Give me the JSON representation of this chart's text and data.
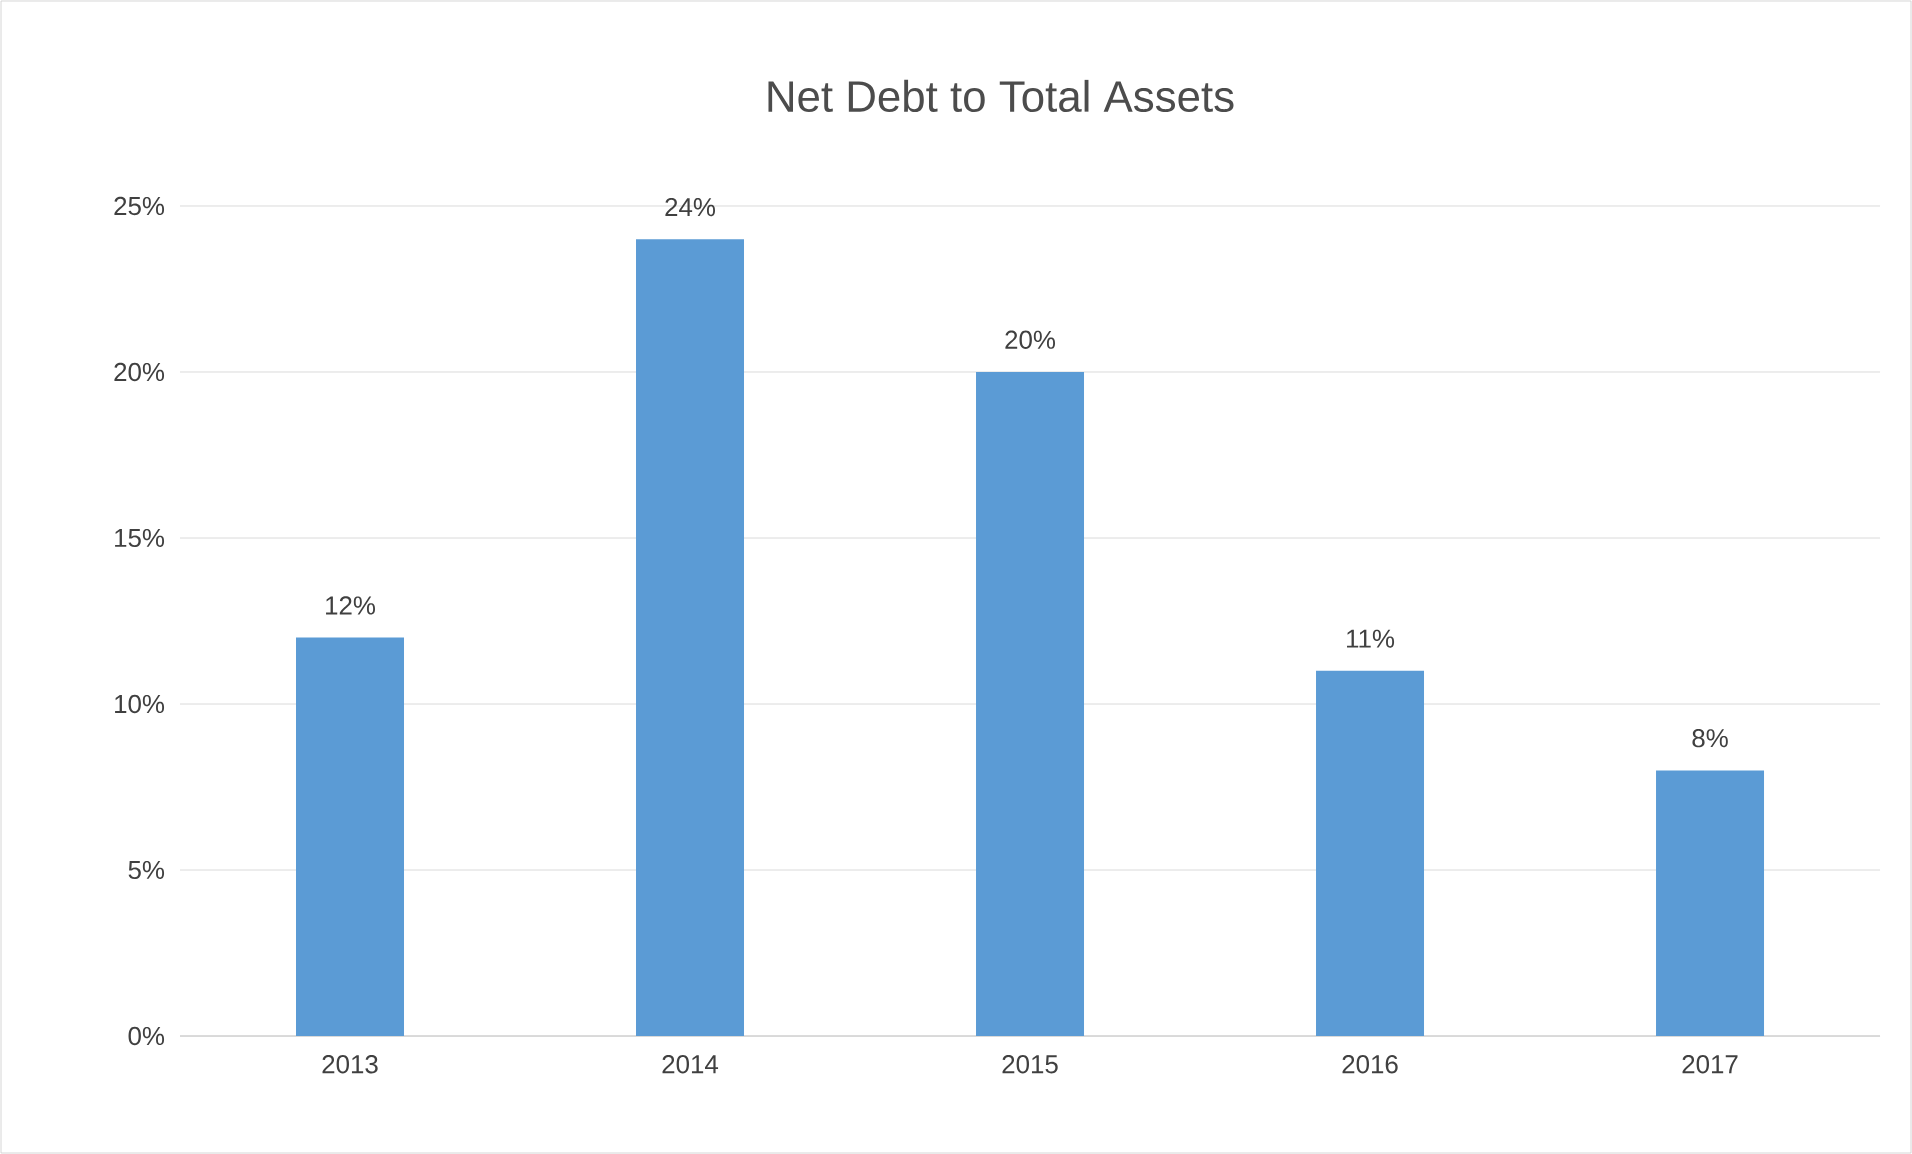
{
  "chart_data": {
    "type": "bar",
    "title": "Net Debt to Total Assets",
    "categories": [
      "2013",
      "2014",
      "2015",
      "2016",
      "2017"
    ],
    "values": [
      12,
      24,
      20,
      11,
      8
    ],
    "value_labels": [
      "12%",
      "24%",
      "20%",
      "11%",
      "8%"
    ],
    "color": "#5b9bd5",
    "ylim": [
      0,
      25
    ],
    "yticks": [
      {
        "value": 0,
        "label": "0%"
      },
      {
        "value": 5,
        "label": "5%"
      },
      {
        "value": 10,
        "label": "10%"
      },
      {
        "value": 15,
        "label": "15%"
      },
      {
        "value": 20,
        "label": "20%"
      },
      {
        "value": 25,
        "label": "25%"
      }
    ],
    "grid": "y"
  }
}
